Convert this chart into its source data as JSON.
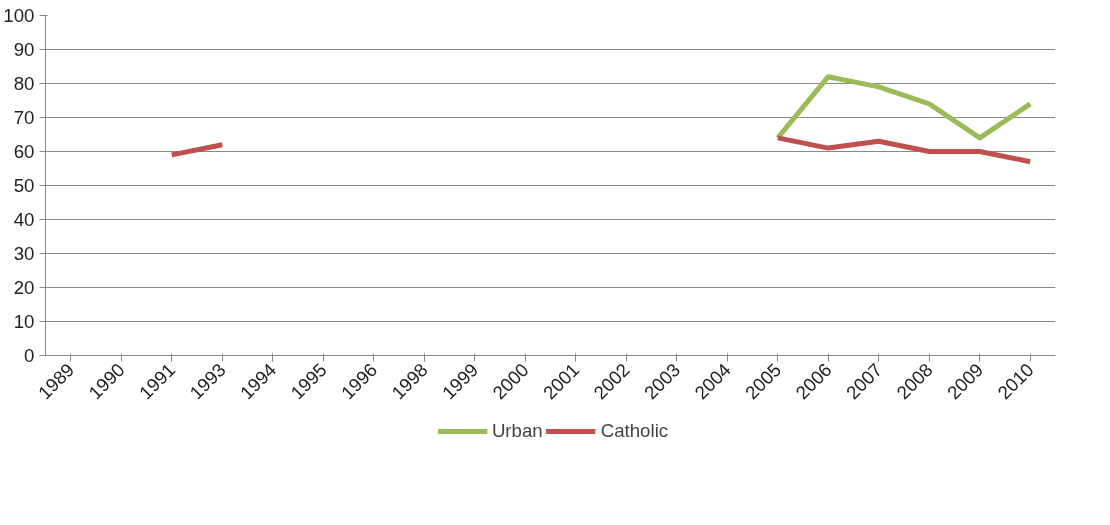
{
  "chart_data": {
    "type": "line",
    "categories": [
      "1989",
      "1990",
      "1991",
      "1993",
      "1994",
      "1995",
      "1996",
      "1998",
      "1999",
      "2000",
      "2001",
      "2002",
      "2003",
      "2004",
      "2005",
      "2006",
      "2007",
      "2008",
      "2009",
      "2010"
    ],
    "series": [
      {
        "name": "Urban",
        "color": "#9bbb59",
        "values": [
          null,
          null,
          null,
          null,
          null,
          null,
          null,
          null,
          null,
          null,
          null,
          null,
          null,
          null,
          64,
          82,
          79,
          74,
          64,
          74
        ]
      },
      {
        "name": "Catholic",
        "color": "#c0504d",
        "values": [
          null,
          null,
          59,
          62,
          null,
          null,
          null,
          null,
          null,
          null,
          null,
          null,
          null,
          null,
          64,
          61,
          63,
          60,
          60,
          57
        ]
      }
    ],
    "ylim": [
      0,
      100
    ],
    "yticks": [
      0,
      10,
      20,
      30,
      40,
      50,
      60,
      70,
      80,
      90,
      100
    ],
    "grid": "y",
    "legend": "bottom",
    "marker": "none",
    "line_style": "solid"
  }
}
